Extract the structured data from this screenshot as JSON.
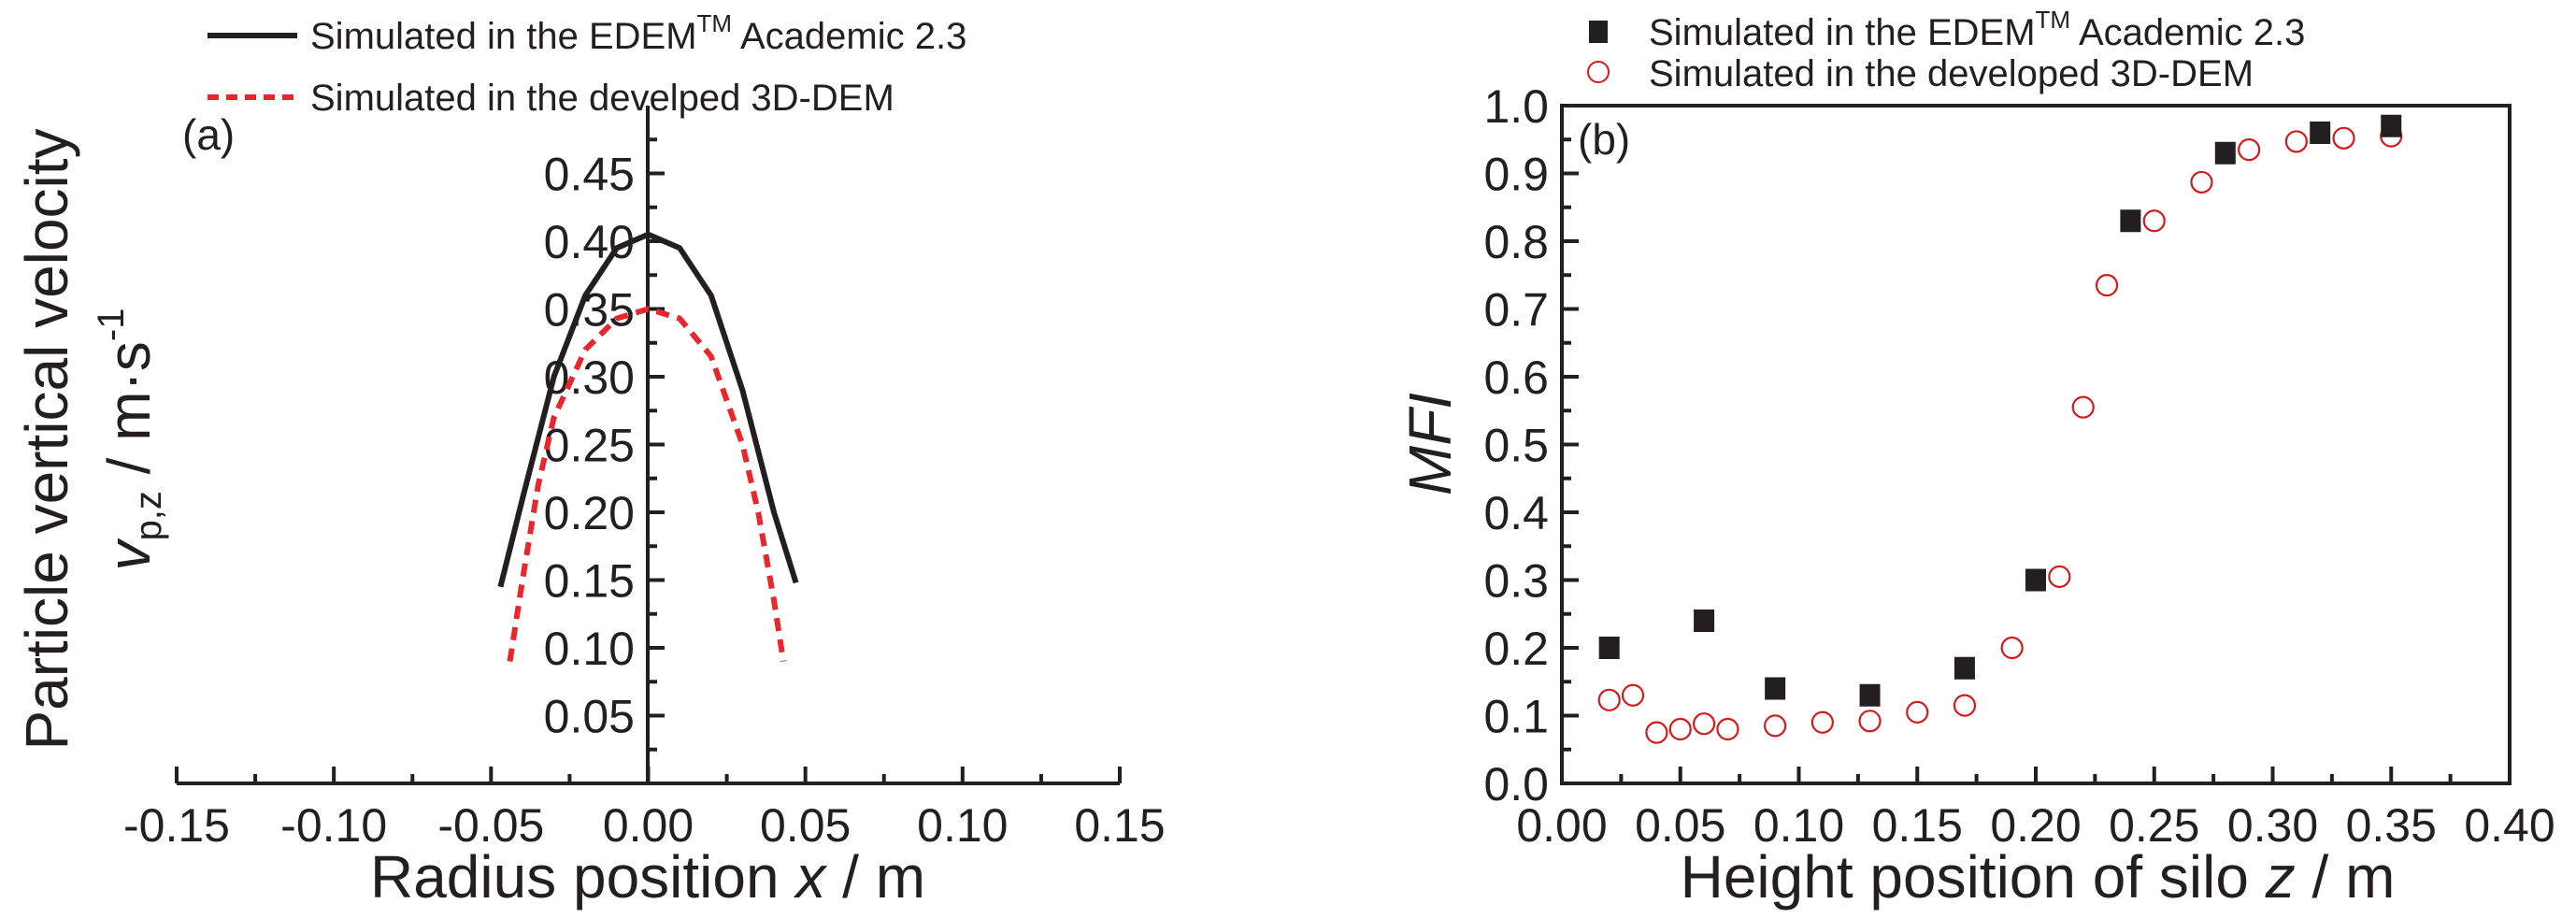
{
  "chart_data": [
    {
      "type": "line",
      "panel_label": "(a)",
      "title": "",
      "xlabel": {
        "prefix": "Radius position ",
        "var": "x",
        "suffix": " / m"
      },
      "ylabel": {
        "line1": "Particle vertical velocity",
        "var": "v",
        "sub": "p,z",
        "unit": " / m·s",
        "sup": "-1"
      },
      "xlim": [
        -0.15,
        0.15
      ],
      "ylim": [
        0,
        0.5
      ],
      "xticks": [
        "-0.15",
        "-0.10",
        "-0.05",
        "0.00",
        "0.05",
        "0.10",
        "0.15"
      ],
      "yticks": [
        "0.05",
        "0.10",
        "0.15",
        "0.20",
        "0.25",
        "0.30",
        "0.35",
        "0.40",
        "0.45"
      ],
      "legend_position": "top",
      "series": [
        {
          "name_pre": "Simulated in the EDEM",
          "name_sup": "TM",
          "name_post": " Academic 2.3",
          "color": "#231f20",
          "style": "solid",
          "x": [
            -0.047,
            -0.04,
            -0.03,
            -0.02,
            -0.01,
            0,
            0.01,
            0.02,
            0.03,
            0.04,
            0.047
          ],
          "y": [
            0.145,
            0.21,
            0.3,
            0.36,
            0.395,
            0.405,
            0.395,
            0.36,
            0.29,
            0.2,
            0.148
          ]
        },
        {
          "name": "Simulated in the develped 3D-DEM",
          "color": "#e8262b",
          "style": "dashed",
          "x": [
            -0.044,
            -0.04,
            -0.035,
            -0.03,
            -0.02,
            -0.01,
            0,
            0.01,
            0.02,
            0.03,
            0.035,
            0.04,
            0.043
          ],
          "y": [
            0.09,
            0.15,
            0.22,
            0.27,
            0.32,
            0.343,
            0.35,
            0.343,
            0.315,
            0.25,
            0.2,
            0.135,
            0.09
          ]
        }
      ]
    },
    {
      "type": "scatter",
      "panel_label": "(b)",
      "title": "",
      "xlabel": {
        "prefix": "Height position of silo ",
        "var": "z",
        "suffix": " / m"
      },
      "ylabel": {
        "var": "MFI"
      },
      "xlim": [
        0,
        0.4
      ],
      "ylim": [
        0,
        1.0
      ],
      "xticks": [
        "0.00",
        "0.05",
        "0.10",
        "0.15",
        "0.20",
        "0.25",
        "0.30",
        "0.35",
        "0.40"
      ],
      "yticks": [
        "0.0",
        "0.1",
        "0.2",
        "0.3",
        "0.4",
        "0.5",
        "0.6",
        "0.7",
        "0.8",
        "0.9",
        "1.0"
      ],
      "legend_position": "top",
      "series": [
        {
          "name_pre": "Simulated in the EDEM",
          "name_sup": "TM",
          "name_post": " Academic 2.3",
          "color": "#231f20",
          "marker": "filled-square",
          "x": [
            0.02,
            0.06,
            0.09,
            0.13,
            0.17,
            0.2,
            0.24,
            0.28,
            0.32,
            0.35
          ],
          "y": [
            0.2,
            0.24,
            0.14,
            0.13,
            0.17,
            0.3,
            0.83,
            0.93,
            0.96,
            0.97
          ]
        },
        {
          "name": "Simulated in the developed 3D-DEM",
          "color": "#d7191c",
          "marker": "open-circle",
          "x": [
            0.02,
            0.03,
            0.04,
            0.05,
            0.06,
            0.07,
            0.09,
            0.11,
            0.13,
            0.15,
            0.17,
            0.19,
            0.21,
            0.22,
            0.23,
            0.25,
            0.27,
            0.29,
            0.31,
            0.33,
            0.35
          ],
          "y": [
            0.123,
            0.13,
            0.075,
            0.08,
            0.088,
            0.08,
            0.085,
            0.09,
            0.092,
            0.105,
            0.115,
            0.2,
            0.305,
            0.555,
            0.735,
            0.83,
            0.887,
            0.935,
            0.947,
            0.952,
            0.955
          ]
        }
      ]
    }
  ]
}
